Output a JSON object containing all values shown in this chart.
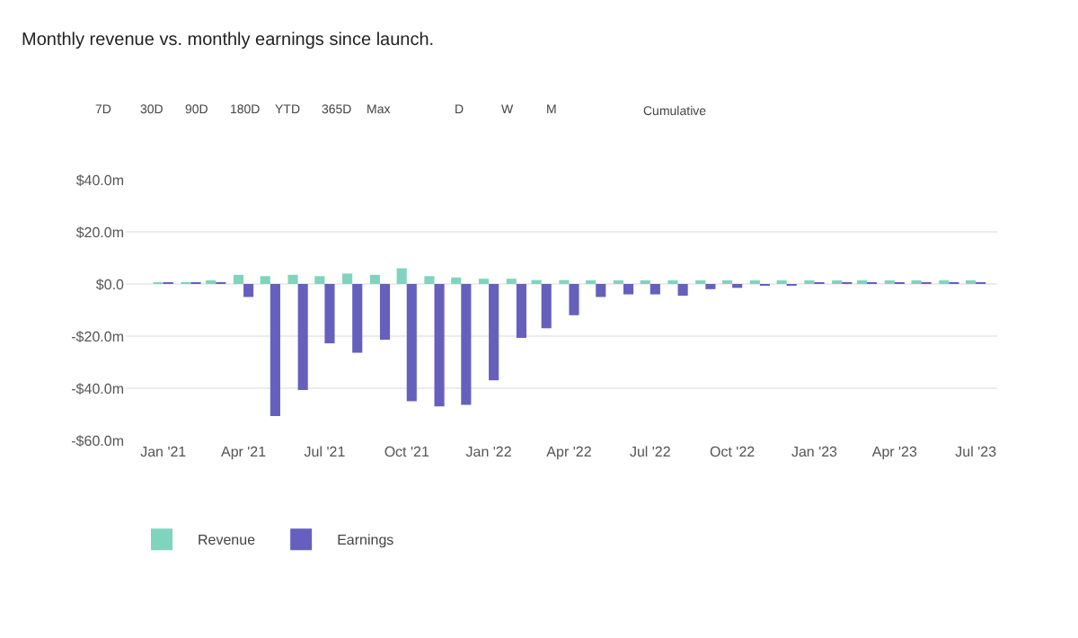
{
  "chart_data": {
    "type": "bar",
    "title": "Monthly revenue vs. monthly earnings since launch.",
    "x": [
      "2021-01",
      "2021-02",
      "2021-03",
      "2021-04",
      "2021-05",
      "2021-06",
      "2021-07",
      "2021-08",
      "2021-09",
      "2021-10",
      "2021-11",
      "2021-12",
      "2022-01",
      "2022-02",
      "2022-03",
      "2022-04",
      "2022-05",
      "2022-06",
      "2022-07",
      "2022-08",
      "2022-09",
      "2022-10",
      "2022-11",
      "2022-12",
      "2023-01",
      "2023-02",
      "2023-03",
      "2023-04",
      "2023-05",
      "2023-06",
      "2023-07"
    ],
    "series": [
      {
        "name": "Revenue",
        "color": "#7fd4bd",
        "values": [
          0.5,
          0.5,
          1,
          3.5,
          3,
          3.5,
          3,
          4,
          3.5,
          6,
          3,
          2.5,
          2,
          2,
          1.5,
          1.5,
          1,
          1,
          1,
          1,
          0.8,
          0.8,
          0.8,
          0.8,
          0.8,
          1,
          1,
          1,
          1,
          1,
          0.8
        ]
      },
      {
        "name": "Earnings",
        "color": "#6560bd",
        "values": [
          0.3,
          0.3,
          0.5,
          -5,
          -50.7,
          -40.7,
          -22.8,
          -26.4,
          -21.4,
          -45,
          -47,
          -46.4,
          -37,
          -20.7,
          -17,
          -12,
          -5,
          -4,
          -4,
          -4.5,
          -2,
          -1.5,
          -0.5,
          -0.5,
          0.5,
          0.5,
          0.5,
          0.5,
          0.5,
          0.5,
          0.3
        ]
      }
    ],
    "xlim": [
      "2020-11-20",
      "2023-07-25"
    ],
    "xticks": [
      {
        "value": "2021-01-01",
        "label": "Jan '21"
      },
      {
        "value": "2021-04-01",
        "label": "Apr '21"
      },
      {
        "value": "2021-07-01",
        "label": "Jul '21"
      },
      {
        "value": "2021-10-01",
        "label": "Oct '21"
      },
      {
        "value": "2022-01-01",
        "label": "Jan '22"
      },
      {
        "value": "2022-04-01",
        "label": "Apr '22"
      },
      {
        "value": "2022-07-01",
        "label": "Jul '22"
      },
      {
        "value": "2022-10-01",
        "label": "Oct '22"
      },
      {
        "value": "2023-01-01",
        "label": "Jan '23"
      },
      {
        "value": "2023-04-01",
        "label": "Apr '23"
      },
      {
        "value": "2023-07-01",
        "label": "Jul '23"
      }
    ],
    "ylim": [
      -60,
      40
    ],
    "yticks": [
      {
        "value": -60,
        "label": "-$60.0m"
      },
      {
        "value": -40,
        "label": "-$40.0m"
      },
      {
        "value": -20,
        "label": "-$20.0m"
      },
      {
        "value": 0,
        "label": "$0.0"
      },
      {
        "value": 20,
        "label": "$20.0m"
      },
      {
        "value": 40,
        "label": "$40.0m"
      }
    ],
    "grid": "y",
    "legend": "bottom left",
    "annotations": [
      "7D",
      "30D",
      "90D",
      "180D",
      "YTD",
      "365D",
      "Max",
      "D",
      "W",
      "M",
      "Cumulative"
    ]
  }
}
